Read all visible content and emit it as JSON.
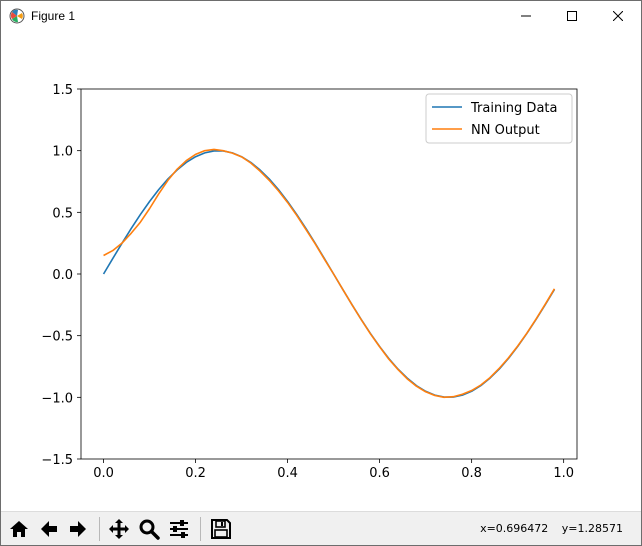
{
  "window": {
    "title": "Figure 1",
    "icons": {
      "app": "matplotlib-app-icon",
      "minimize": "minimize-icon",
      "maximize": "maximize-icon",
      "close": "close-icon"
    }
  },
  "toolbar": {
    "buttons": [
      {
        "name": "home-button",
        "icon": "home-icon"
      },
      {
        "name": "back-button",
        "icon": "arrow-left-icon"
      },
      {
        "name": "forward-button",
        "icon": "arrow-right-icon"
      },
      {
        "name": "pan-button",
        "icon": "move-arrows-icon"
      },
      {
        "name": "zoom-button",
        "icon": "magnifier-icon"
      },
      {
        "name": "configure-subplots-button",
        "icon": "sliders-icon"
      },
      {
        "name": "save-button",
        "icon": "floppy-disk-icon"
      }
    ],
    "coords": {
      "x": "x=0.696472",
      "y": "y=1.28571"
    }
  },
  "chart_data": {
    "type": "line",
    "title": "",
    "xlabel": "",
    "ylabel": "",
    "xlim": [
      -0.049,
      1.029
    ],
    "ylim": [
      -1.5,
      1.5
    ],
    "xticks": [
      0.0,
      0.2,
      0.4,
      0.6,
      0.8,
      1.0
    ],
    "xtick_labels": [
      "0.0",
      "0.2",
      "0.4",
      "0.6",
      "0.8",
      "1.0"
    ],
    "yticks": [
      -1.5,
      -1.0,
      -0.5,
      0.0,
      0.5,
      1.0,
      1.5
    ],
    "ytick_labels": [
      "−1.5",
      "−1.0",
      "−0.5",
      "0.0",
      "0.5",
      "1.0",
      "1.5"
    ],
    "grid": false,
    "legend": "top-right",
    "series": [
      {
        "name": "Training Data",
        "color": "#1f77b4",
        "x": [
          0.0,
          0.02,
          0.04,
          0.06,
          0.08,
          0.1,
          0.12,
          0.14,
          0.16,
          0.18,
          0.2,
          0.22,
          0.24,
          0.26,
          0.28,
          0.3,
          0.32,
          0.34,
          0.36,
          0.38,
          0.4,
          0.42,
          0.44,
          0.46,
          0.48,
          0.5,
          0.52,
          0.54,
          0.56,
          0.58,
          0.6,
          0.62,
          0.64,
          0.66,
          0.68,
          0.7,
          0.72,
          0.74,
          0.76,
          0.78,
          0.8,
          0.82,
          0.84,
          0.86,
          0.88,
          0.9,
          0.92,
          0.94,
          0.96,
          0.98
        ],
        "y": [
          0.0,
          0.125,
          0.249,
          0.368,
          0.482,
          0.588,
          0.685,
          0.771,
          0.844,
          0.905,
          0.951,
          0.982,
          0.998,
          0.998,
          0.982,
          0.951,
          0.905,
          0.844,
          0.771,
          0.685,
          0.588,
          0.482,
          0.368,
          0.249,
          0.125,
          0.0,
          -0.125,
          -0.249,
          -0.368,
          -0.482,
          -0.588,
          -0.685,
          -0.771,
          -0.844,
          -0.905,
          -0.951,
          -0.982,
          -0.998,
          -0.998,
          -0.982,
          -0.951,
          -0.905,
          -0.844,
          -0.771,
          -0.685,
          -0.588,
          -0.482,
          -0.368,
          -0.249,
          -0.125
        ]
      },
      {
        "name": "NN Output",
        "color": "#ff7f0e",
        "x": [
          0.0,
          0.02,
          0.04,
          0.06,
          0.08,
          0.1,
          0.12,
          0.14,
          0.16,
          0.18,
          0.2,
          0.22,
          0.24,
          0.26,
          0.28,
          0.3,
          0.32,
          0.34,
          0.36,
          0.38,
          0.4,
          0.42,
          0.44,
          0.46,
          0.48,
          0.5,
          0.52,
          0.54,
          0.56,
          0.58,
          0.6,
          0.62,
          0.64,
          0.66,
          0.68,
          0.7,
          0.72,
          0.74,
          0.76,
          0.78,
          0.8,
          0.82,
          0.84,
          0.86,
          0.88,
          0.9,
          0.92,
          0.94,
          0.96,
          0.98
        ],
        "y": [
          0.15,
          0.19,
          0.25,
          0.33,
          0.42,
          0.53,
          0.65,
          0.76,
          0.85,
          0.92,
          0.97,
          1.0,
          1.01,
          1.0,
          0.98,
          0.95,
          0.9,
          0.835,
          0.76,
          0.675,
          0.58,
          0.475,
          0.36,
          0.245,
          0.12,
          0.0,
          -0.125,
          -0.25,
          -0.37,
          -0.485,
          -0.59,
          -0.69,
          -0.775,
          -0.85,
          -0.91,
          -0.955,
          -0.985,
          -1.0,
          -0.995,
          -0.975,
          -0.945,
          -0.9,
          -0.84,
          -0.765,
          -0.68,
          -0.585,
          -0.48,
          -0.365,
          -0.245,
          -0.12
        ]
      }
    ]
  }
}
